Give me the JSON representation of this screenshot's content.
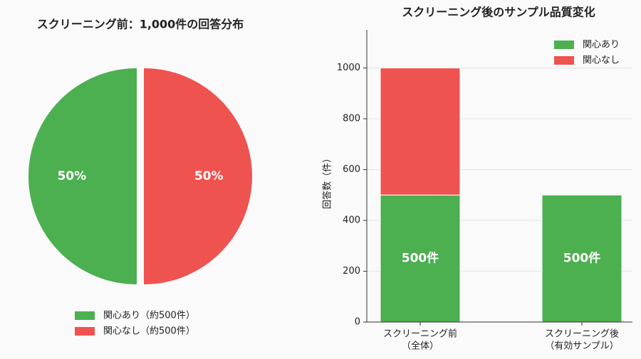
{
  "chart_data": [
    {
      "type": "pie",
      "title": "スクリーニング前：1,000件の回答分布",
      "categories": [
        "関心あり（約500件）",
        "関心なし（約500件）"
      ],
      "values": [
        50,
        50
      ],
      "value_labels": [
        "50%",
        "50%"
      ],
      "colors": [
        "#4caf50",
        "#ef5350"
      ],
      "legend": "lower center"
    },
    {
      "type": "stacked_bar",
      "title": "スクリーニング後のサンプル品質変化",
      "y_label": "回答数（件）",
      "categories": [
        [
          "スクリーニング前",
          "（全体）"
        ],
        [
          "スクリーニング後",
          "（有効サンプル）"
        ]
      ],
      "series": [
        {
          "name": "関心あり",
          "color": "#4caf50",
          "values": [
            500,
            500
          ],
          "value_labels": [
            "500件",
            "500件"
          ]
        },
        {
          "name": "関心なし",
          "color": "#ef5350",
          "values": [
            500,
            0
          ]
        }
      ],
      "ylim": [
        0,
        1150
      ],
      "yticks": [
        0,
        200,
        400,
        600,
        800,
        1000
      ],
      "grid": true,
      "legend": "upper right"
    }
  ]
}
